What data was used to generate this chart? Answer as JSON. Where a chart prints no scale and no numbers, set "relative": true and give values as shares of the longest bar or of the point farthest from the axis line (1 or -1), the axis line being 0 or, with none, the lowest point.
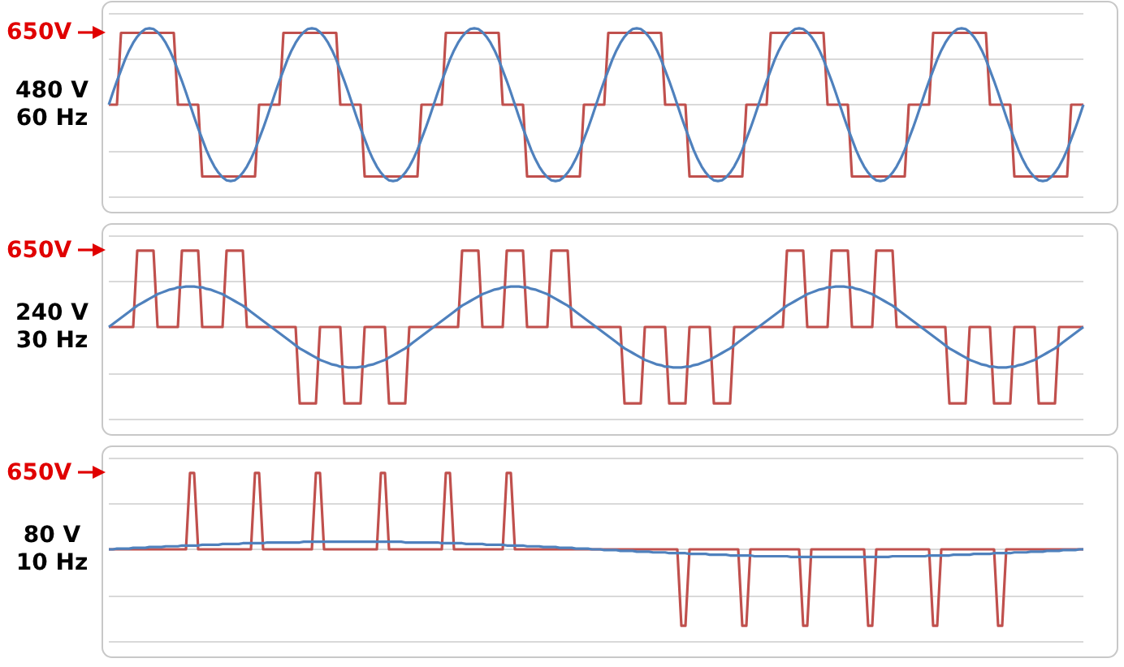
{
  "chart_data": [
    {
      "type": "line",
      "relative": true,
      "grid": "y",
      "annotations": [
        "650V",
        "480 V",
        "60 Hz"
      ],
      "categories": [
        null,
        null,
        null,
        null,
        null,
        null,
        null,
        null,
        null,
        null,
        null,
        null,
        null,
        null,
        null,
        null,
        null,
        null,
        null,
        null,
        null,
        null,
        null,
        null,
        null,
        null,
        null,
        null,
        null,
        null,
        null,
        null,
        null,
        null,
        null,
        null,
        null,
        null,
        null,
        null,
        null,
        null,
        null,
        null,
        null,
        null,
        null,
        null,
        null,
        null,
        null,
        null,
        null,
        null,
        null,
        null,
        null,
        null,
        null,
        null,
        null,
        null,
        null,
        null,
        null,
        null,
        null,
        null,
        null,
        null,
        null,
        null,
        null,
        null,
        null,
        null,
        null,
        null,
        null,
        null,
        null,
        null,
        null,
        null,
        null,
        null,
        null,
        null,
        null,
        null,
        null,
        null,
        null,
        null,
        null,
        null,
        null,
        null,
        null,
        null,
        null,
        null,
        null,
        null,
        null,
        null,
        null,
        null,
        null,
        null,
        null,
        null,
        null,
        null,
        null,
        null,
        null,
        null,
        null,
        null,
        null,
        null,
        null,
        null,
        null,
        null,
        null,
        null,
        null,
        null,
        null,
        null,
        null,
        null,
        null,
        null,
        null,
        null,
        null,
        null,
        null,
        null,
        null,
        null,
        null,
        null,
        null,
        null,
        null,
        null,
        null,
        null,
        null,
        null,
        null,
        null,
        null,
        null,
        null,
        null,
        null,
        null,
        null,
        null,
        null,
        null,
        null,
        null,
        null,
        null,
        null,
        null,
        null,
        null,
        null,
        null,
        null,
        null,
        null,
        null,
        null,
        null,
        null,
        null,
        null,
        null,
        null,
        null,
        null,
        null,
        null,
        null,
        null,
        null,
        null,
        null,
        null,
        null,
        null,
        null,
        null,
        null,
        null,
        null,
        null,
        null,
        null,
        null,
        null,
        null,
        null,
        null,
        null,
        null,
        null,
        null,
        null,
        null,
        null,
        null,
        null,
        null,
        null,
        null,
        null,
        null,
        null,
        null,
        null,
        null,
        null,
        null,
        null,
        null,
        null,
        null,
        null,
        null,
        null,
        null,
        null
      ],
      "series": [
        {
          "color": "#c0504d",
          "values": [
            0,
            0,
            0,
            0.94,
            0.94,
            0.94,
            0.94,
            0.94,
            0.94,
            0.94,
            0.94,
            0.94,
            0.94,
            0.94,
            0.94,
            0.94,
            0.94,
            0,
            0,
            0,
            0,
            0,
            0,
            -0.94,
            -0.94,
            -0.94,
            -0.94,
            -0.94,
            -0.94,
            -0.94,
            -0.94,
            -0.94,
            -0.94,
            -0.94,
            -0.94,
            -0.94,
            -0.94,
            0,
            0,
            0,
            0,
            0,
            0,
            0.94,
            0.94,
            0.94,
            0.94,
            0.94,
            0.94,
            0.94,
            0.94,
            0.94,
            0.94,
            0.94,
            0.94,
            0.94,
            0.94,
            0,
            0,
            0,
            0,
            0,
            0,
            -0.94,
            -0.94,
            -0.94,
            -0.94,
            -0.94,
            -0.94,
            -0.94,
            -0.94,
            -0.94,
            -0.94,
            -0.94,
            -0.94,
            -0.94,
            -0.94,
            0,
            0,
            0,
            0,
            0,
            0,
            0.94,
            0.94,
            0.94,
            0.94,
            0.94,
            0.94,
            0.94,
            0.94,
            0.94,
            0.94,
            0.94,
            0.94,
            0.94,
            0.94,
            0,
            0,
            0,
            0,
            0,
            0,
            -0.94,
            -0.94,
            -0.94,
            -0.94,
            -0.94,
            -0.94,
            -0.94,
            -0.94,
            -0.94,
            -0.94,
            -0.94,
            -0.94,
            -0.94,
            -0.94,
            0,
            0,
            0,
            0,
            0,
            0,
            0.94,
            0.94,
            0.94,
            0.94,
            0.94,
            0.94,
            0.94,
            0.94,
            0.94,
            0.94,
            0.94,
            0.94,
            0.94,
            0.94,
            0,
            0,
            0,
            0,
            0,
            0,
            -0.94,
            -0.94,
            -0.94,
            -0.94,
            -0.94,
            -0.94,
            -0.94,
            -0.94,
            -0.94,
            -0.94,
            -0.94,
            -0.94,
            -0.94,
            -0.94,
            0,
            0,
            0,
            0,
            0,
            0,
            0.94,
            0.94,
            0.94,
            0.94,
            0.94,
            0.94,
            0.94,
            0.94,
            0.94,
            0.94,
            0.94,
            0.94,
            0.94,
            0.94,
            0,
            0,
            0,
            0,
            0,
            0,
            -0.94,
            -0.94,
            -0.94,
            -0.94,
            -0.94,
            -0.94,
            -0.94,
            -0.94,
            -0.94,
            -0.94,
            -0.94,
            -0.94,
            -0.94,
            -0.94,
            0,
            0,
            0,
            0,
            0,
            0,
            0.94,
            0.94,
            0.94,
            0.94,
            0.94,
            0.94,
            0.94,
            0.94,
            0.94,
            0.94,
            0.94,
            0.94,
            0.94,
            0.94,
            0,
            0,
            0,
            0,
            0,
            0,
            -0.94,
            -0.94,
            -0.94,
            -0.94,
            -0.94,
            -0.94,
            -0.94,
            -0.94,
            -0.94,
            -0.94,
            -0.94,
            -0.94,
            -0.94,
            -0.94,
            0,
            0,
            0,
            0
          ]
        },
        {
          "color": "#4f81bd",
          "values": [
            0,
            0.16,
            0.31,
            0.45,
            0.59,
            0.71,
            0.81,
            0.89,
            0.95,
            0.99,
            1,
            0.99,
            0.95,
            0.89,
            0.81,
            0.71,
            0.59,
            0.45,
            0.31,
            0.16,
            0,
            -0.16,
            -0.31,
            -0.45,
            -0.59,
            -0.71,
            -0.81,
            -0.89,
            -0.95,
            -0.99,
            -1,
            -0.99,
            -0.95,
            -0.89,
            -0.81,
            -0.71,
            -0.59,
            -0.45,
            -0.31,
            -0.16,
            0,
            0.16,
            0.31,
            0.45,
            0.59,
            0.71,
            0.81,
            0.89,
            0.95,
            0.99,
            1,
            0.99,
            0.95,
            0.89,
            0.81,
            0.71,
            0.59,
            0.45,
            0.31,
            0.16,
            0,
            -0.16,
            -0.31,
            -0.45,
            -0.59,
            -0.71,
            -0.81,
            -0.89,
            -0.95,
            -0.99,
            -1,
            -0.99,
            -0.95,
            -0.89,
            -0.81,
            -0.71,
            -0.59,
            -0.45,
            -0.31,
            -0.16,
            0,
            0.16,
            0.31,
            0.45,
            0.59,
            0.71,
            0.81,
            0.89,
            0.95,
            0.99,
            1,
            0.99,
            0.95,
            0.89,
            0.81,
            0.71,
            0.59,
            0.45,
            0.31,
            0.16,
            0,
            -0.16,
            -0.31,
            -0.45,
            -0.59,
            -0.71,
            -0.81,
            -0.89,
            -0.95,
            -0.99,
            -1,
            -0.99,
            -0.95,
            -0.89,
            -0.81,
            -0.71,
            -0.59,
            -0.45,
            -0.31,
            -0.16,
            0,
            0.16,
            0.31,
            0.45,
            0.59,
            0.71,
            0.81,
            0.89,
            0.95,
            0.99,
            1,
            0.99,
            0.95,
            0.89,
            0.81,
            0.71,
            0.59,
            0.45,
            0.31,
            0.16,
            0,
            -0.16,
            -0.31,
            -0.45,
            -0.59,
            -0.71,
            -0.81,
            -0.89,
            -0.95,
            -0.99,
            -1,
            -0.99,
            -0.95,
            -0.89,
            -0.81,
            -0.71,
            -0.59,
            -0.45,
            -0.31,
            -0.16,
            0,
            0.16,
            0.31,
            0.45,
            0.59,
            0.71,
            0.81,
            0.89,
            0.95,
            0.99,
            1,
            0.99,
            0.95,
            0.89,
            0.81,
            0.71,
            0.59,
            0.45,
            0.31,
            0.16,
            0,
            -0.16,
            -0.31,
            -0.45,
            -0.59,
            -0.71,
            -0.81,
            -0.89,
            -0.95,
            -0.99,
            -1,
            -0.99,
            -0.95,
            -0.89,
            -0.81,
            -0.71,
            -0.59,
            -0.45,
            -0.31,
            -0.16,
            0,
            0.16,
            0.31,
            0.45,
            0.59,
            0.71,
            0.81,
            0.89,
            0.95,
            0.99,
            1,
            0.99,
            0.95,
            0.89,
            0.81,
            0.71,
            0.59,
            0.45,
            0.31,
            0.16,
            0,
            -0.16,
            -0.31,
            -0.45,
            -0.59,
            -0.71,
            -0.81,
            -0.89,
            -0.95,
            -0.99,
            -1,
            -0.99,
            -0.95,
            -0.89,
            -0.81,
            -0.71,
            -0.59,
            -0.45,
            -0.31,
            -0.16,
            0
          ]
        }
      ]
    },
    {
      "type": "line",
      "relative": true,
      "grid": "y",
      "annotations": [
        "650V",
        "240 V",
        "30 Hz"
      ],
      "categories": [
        null,
        null,
        null,
        null,
        null,
        null,
        null,
        null,
        null,
        null,
        null,
        null,
        null,
        null,
        null,
        null,
        null,
        null,
        null,
        null,
        null,
        null,
        null,
        null,
        null,
        null,
        null,
        null,
        null,
        null,
        null,
        null,
        null,
        null,
        null,
        null,
        null,
        null,
        null,
        null,
        null,
        null,
        null,
        null,
        null,
        null,
        null,
        null,
        null,
        null,
        null,
        null,
        null,
        null,
        null,
        null,
        null,
        null,
        null,
        null,
        null,
        null,
        null,
        null,
        null,
        null,
        null,
        null,
        null,
        null,
        null,
        null,
        null,
        null,
        null,
        null,
        null,
        null,
        null,
        null,
        null,
        null,
        null,
        null,
        null,
        null,
        null,
        null,
        null,
        null,
        null,
        null,
        null,
        null,
        null,
        null,
        null,
        null,
        null,
        null,
        null,
        null,
        null,
        null,
        null,
        null,
        null,
        null,
        null,
        null,
        null,
        null,
        null,
        null,
        null,
        null,
        null,
        null,
        null,
        null,
        null,
        null,
        null,
        null,
        null,
        null,
        null,
        null,
        null,
        null,
        null,
        null,
        null,
        null,
        null,
        null,
        null,
        null,
        null,
        null,
        null,
        null,
        null,
        null,
        null,
        null,
        null,
        null,
        null,
        null,
        null,
        null,
        null,
        null,
        null,
        null,
        null,
        null,
        null,
        null,
        null,
        null,
        null,
        null,
        null,
        null,
        null,
        null,
        null,
        null,
        null,
        null,
        null,
        null,
        null,
        null,
        null,
        null,
        null,
        null,
        null,
        null,
        null,
        null,
        null,
        null,
        null,
        null,
        null,
        null,
        null,
        null,
        null,
        null,
        null,
        null,
        null,
        null,
        null,
        null,
        null,
        null,
        null,
        null,
        null,
        null,
        null,
        null,
        null,
        null,
        null,
        null,
        null,
        null,
        null,
        null,
        null,
        null,
        null,
        null,
        null,
        null,
        null,
        null,
        null,
        null,
        null,
        null,
        null,
        null,
        null,
        null,
        null,
        null,
        null,
        null,
        null,
        null,
        null,
        null,
        null
      ],
      "series": [
        {
          "color": "#c0504d",
          "values": [
            0,
            0,
            0,
            0,
            0,
            0,
            0,
            1,
            1,
            1,
            1,
            1,
            0,
            0,
            0,
            0,
            0,
            0,
            1,
            1,
            1,
            1,
            1,
            0,
            0,
            0,
            0,
            0,
            0,
            1,
            1,
            1,
            1,
            1,
            0,
            0,
            0,
            0,
            0,
            0,
            0,
            0,
            0,
            0,
            0,
            0,
            0,
            -1,
            -1,
            -1,
            -1,
            -1,
            0,
            0,
            0,
            0,
            0,
            0,
            -1,
            -1,
            -1,
            -1,
            -1,
            0,
            0,
            0,
            0,
            0,
            0,
            -1,
            -1,
            -1,
            -1,
            -1,
            0,
            0,
            0,
            0,
            0,
            0,
            0,
            0,
            0,
            0,
            0,
            0,
            0,
            1,
            1,
            1,
            1,
            1,
            0,
            0,
            0,
            0,
            0,
            0,
            1,
            1,
            1,
            1,
            1,
            0,
            0,
            0,
            0,
            0,
            0,
            1,
            1,
            1,
            1,
            1,
            0,
            0,
            0,
            0,
            0,
            0,
            0,
            0,
            0,
            0,
            0,
            0,
            0,
            -1,
            -1,
            -1,
            -1,
            -1,
            0,
            0,
            0,
            0,
            0,
            0,
            -1,
            -1,
            -1,
            -1,
            -1,
            0,
            0,
            0,
            0,
            0,
            0,
            -1,
            -1,
            -1,
            -1,
            -1,
            0,
            0,
            0,
            0,
            0,
            0,
            0,
            0,
            0,
            0,
            0,
            0,
            0,
            1,
            1,
            1,
            1,
            1,
            0,
            0,
            0,
            0,
            0,
            0,
            1,
            1,
            1,
            1,
            1,
            0,
            0,
            0,
            0,
            0,
            0,
            1,
            1,
            1,
            1,
            1,
            0,
            0,
            0,
            0,
            0,
            0,
            0,
            0,
            0,
            0,
            0,
            0,
            0,
            -1,
            -1,
            -1,
            -1,
            -1,
            0,
            0,
            0,
            0,
            0,
            0,
            -1,
            -1,
            -1,
            -1,
            -1,
            0,
            0,
            0,
            0,
            0,
            0,
            -1,
            -1,
            -1,
            -1,
            -1,
            0,
            0,
            0,
            0,
            0,
            0,
            0
          ]
        },
        {
          "color": "#4f81bd",
          "values": [
            0,
            0.04,
            0.08,
            0.12,
            0.16,
            0.2,
            0.24,
            0.28,
            0.31,
            0.34,
            0.37,
            0.4,
            0.43,
            0.45,
            0.47,
            0.49,
            0.5,
            0.52,
            0.52,
            0.53,
            0.53,
            0.53,
            0.52,
            0.52,
            0.5,
            0.49,
            0.47,
            0.45,
            0.43,
            0.4,
            0.37,
            0.34,
            0.31,
            0.28,
            0.24,
            0.2,
            0.16,
            0.12,
            0.08,
            0.04,
            0,
            -0.04,
            -0.08,
            -0.12,
            -0.16,
            -0.2,
            -0.24,
            -0.28,
            -0.31,
            -0.34,
            -0.37,
            -0.4,
            -0.43,
            -0.45,
            -0.47,
            -0.49,
            -0.5,
            -0.52,
            -0.52,
            -0.53,
            -0.53,
            -0.53,
            -0.52,
            -0.52,
            -0.5,
            -0.49,
            -0.47,
            -0.45,
            -0.43,
            -0.4,
            -0.37,
            -0.34,
            -0.31,
            -0.28,
            -0.24,
            -0.2,
            -0.16,
            -0.12,
            -0.08,
            -0.04,
            0,
            0.04,
            0.08,
            0.12,
            0.16,
            0.2,
            0.24,
            0.28,
            0.31,
            0.34,
            0.37,
            0.4,
            0.43,
            0.45,
            0.47,
            0.49,
            0.5,
            0.52,
            0.52,
            0.53,
            0.53,
            0.53,
            0.52,
            0.52,
            0.5,
            0.49,
            0.47,
            0.45,
            0.43,
            0.4,
            0.37,
            0.34,
            0.31,
            0.28,
            0.24,
            0.2,
            0.16,
            0.12,
            0.08,
            0.04,
            0,
            -0.04,
            -0.08,
            -0.12,
            -0.16,
            -0.2,
            -0.24,
            -0.28,
            -0.31,
            -0.34,
            -0.37,
            -0.4,
            -0.43,
            -0.45,
            -0.47,
            -0.49,
            -0.5,
            -0.52,
            -0.52,
            -0.53,
            -0.53,
            -0.53,
            -0.52,
            -0.52,
            -0.5,
            -0.49,
            -0.47,
            -0.45,
            -0.43,
            -0.4,
            -0.37,
            -0.34,
            -0.31,
            -0.28,
            -0.24,
            -0.2,
            -0.16,
            -0.12,
            -0.08,
            -0.04,
            0,
            0.04,
            0.08,
            0.12,
            0.16,
            0.2,
            0.24,
            0.28,
            0.31,
            0.34,
            0.37,
            0.4,
            0.43,
            0.45,
            0.47,
            0.49,
            0.5,
            0.52,
            0.52,
            0.53,
            0.53,
            0.53,
            0.52,
            0.52,
            0.5,
            0.49,
            0.47,
            0.45,
            0.43,
            0.4,
            0.37,
            0.34,
            0.31,
            0.28,
            0.24,
            0.2,
            0.16,
            0.12,
            0.08,
            0.04,
            0,
            -0.04,
            -0.08,
            -0.12,
            -0.16,
            -0.2,
            -0.24,
            -0.28,
            -0.31,
            -0.34,
            -0.37,
            -0.4,
            -0.43,
            -0.45,
            -0.47,
            -0.49,
            -0.5,
            -0.52,
            -0.52,
            -0.53,
            -0.53,
            -0.53,
            -0.52,
            -0.52,
            -0.5,
            -0.49,
            -0.47,
            -0.45,
            -0.43,
            -0.4,
            -0.37,
            -0.34,
            -0.31,
            -0.28,
            -0.24,
            -0.2,
            -0.16,
            -0.12,
            -0.08,
            -0.04,
            0
          ]
        }
      ]
    },
    {
      "type": "line",
      "relative": true,
      "grid": "y",
      "annotations": [
        "650V",
        "80 V",
        "10 Hz"
      ],
      "categories": [
        null,
        null,
        null,
        null,
        null,
        null,
        null,
        null,
        null,
        null,
        null,
        null,
        null,
        null,
        null,
        null,
        null,
        null,
        null,
        null,
        null,
        null,
        null,
        null,
        null,
        null,
        null,
        null,
        null,
        null,
        null,
        null,
        null,
        null,
        null,
        null,
        null,
        null,
        null,
        null,
        null,
        null,
        null,
        null,
        null,
        null,
        null,
        null,
        null,
        null,
        null,
        null,
        null,
        null,
        null,
        null,
        null,
        null,
        null,
        null,
        null,
        null,
        null,
        null,
        null,
        null,
        null,
        null,
        null,
        null,
        null,
        null,
        null,
        null,
        null,
        null,
        null,
        null,
        null,
        null,
        null,
        null,
        null,
        null,
        null,
        null,
        null,
        null,
        null,
        null,
        null,
        null,
        null,
        null,
        null,
        null,
        null,
        null,
        null,
        null,
        null,
        null,
        null,
        null,
        null,
        null,
        null,
        null,
        null,
        null,
        null,
        null,
        null,
        null,
        null,
        null,
        null,
        null,
        null,
        null,
        null,
        null,
        null,
        null,
        null,
        null,
        null,
        null,
        null,
        null,
        null,
        null,
        null,
        null,
        null,
        null,
        null,
        null,
        null,
        null,
        null,
        null,
        null,
        null,
        null,
        null,
        null,
        null,
        null,
        null,
        null,
        null,
        null,
        null,
        null,
        null,
        null,
        null,
        null,
        null,
        null,
        null,
        null,
        null,
        null,
        null,
        null,
        null,
        null,
        null,
        null,
        null,
        null,
        null,
        null,
        null,
        null,
        null,
        null,
        null,
        null,
        null,
        null,
        null,
        null,
        null,
        null,
        null,
        null,
        null,
        null,
        null,
        null,
        null,
        null,
        null,
        null,
        null,
        null,
        null,
        null,
        null,
        null,
        null,
        null,
        null,
        null,
        null,
        null,
        null,
        null,
        null,
        null,
        null,
        null,
        null,
        null,
        null,
        null,
        null,
        null,
        null,
        null,
        null,
        null,
        null,
        null,
        null,
        null,
        null,
        null,
        null,
        null,
        null,
        null,
        null,
        null,
        null,
        null,
        null,
        null
      ],
      "series": [
        {
          "color": "#c0504d",
          "values": [
            0,
            0,
            0,
            0,
            0,
            0,
            0,
            0,
            0,
            0,
            0,
            0,
            0,
            0,
            0,
            0,
            0,
            0,
            0,
            0,
            1,
            1,
            0,
            0,
            0,
            0,
            0,
            0,
            0,
            0,
            0,
            0,
            0,
            0,
            0,
            0,
            1,
            1,
            0,
            0,
            0,
            0,
            0,
            0,
            0,
            0,
            0,
            0,
            0,
            0,
            0,
            1,
            1,
            0,
            0,
            0,
            0,
            0,
            0,
            0,
            0,
            0,
            0,
            0,
            0,
            0,
            0,
            1,
            1,
            0,
            0,
            0,
            0,
            0,
            0,
            0,
            0,
            0,
            0,
            0,
            0,
            0,
            0,
            1,
            1,
            0,
            0,
            0,
            0,
            0,
            0,
            0,
            0,
            0,
            0,
            0,
            0,
            0,
            1,
            1,
            0,
            0,
            0,
            0,
            0,
            0,
            0,
            0,
            0,
            0,
            0,
            0,
            0,
            0,
            0,
            0,
            0,
            0,
            0,
            0,
            0,
            0,
            0,
            0,
            0,
            0,
            0,
            0,
            0,
            0,
            0,
            0,
            0,
            0,
            0,
            0,
            0,
            0,
            0,
            0,
            0,
            -1,
            -1,
            0,
            0,
            0,
            0,
            0,
            0,
            0,
            0,
            0,
            0,
            0,
            0,
            0,
            -1,
            -1,
            0,
            0,
            0,
            0,
            0,
            0,
            0,
            0,
            0,
            0,
            0,
            0,
            0,
            -1,
            -1,
            0,
            0,
            0,
            0,
            0,
            0,
            0,
            0,
            0,
            0,
            0,
            0,
            0,
            0,
            -1,
            -1,
            0,
            0,
            0,
            0,
            0,
            0,
            0,
            0,
            0,
            0,
            0,
            0,
            0,
            0,
            -1,
            -1,
            0,
            0,
            0,
            0,
            0,
            0,
            0,
            0,
            0,
            0,
            0,
            0,
            0,
            0,
            -1,
            -1,
            0,
            0,
            0,
            0,
            0,
            0,
            0,
            0,
            0,
            0,
            0,
            0,
            0,
            0,
            0,
            0,
            0,
            0,
            0,
            0
          ]
        },
        {
          "color": "#4f81bd",
          "values": [
            0,
            0,
            0.01,
            0.01,
            0.01,
            0.01,
            0.02,
            0.02,
            0.02,
            0.02,
            0.03,
            0.03,
            0.03,
            0.03,
            0.04,
            0.04,
            0.04,
            0.04,
            0.05,
            0.05,
            0.05,
            0.05,
            0.05,
            0.06,
            0.06,
            0.06,
            0.06,
            0.06,
            0.07,
            0.07,
            0.07,
            0.07,
            0.07,
            0.08,
            0.08,
            0.08,
            0.08,
            0.08,
            0.08,
            0.09,
            0.09,
            0.09,
            0.09,
            0.09,
            0.09,
            0.09,
            0.09,
            0.09,
            0.1,
            0.1,
            0.1,
            0.1,
            0.1,
            0.1,
            0.1,
            0.1,
            0.1,
            0.1,
            0.1,
            0.1,
            0.1,
            0.1,
            0.1,
            0.1,
            0.1,
            0.1,
            0.1,
            0.1,
            0.1,
            0.1,
            0.1,
            0.1,
            0.1,
            0.09,
            0.09,
            0.09,
            0.09,
            0.09,
            0.09,
            0.09,
            0.09,
            0.09,
            0.08,
            0.08,
            0.08,
            0.08,
            0.08,
            0.08,
            0.07,
            0.07,
            0.07,
            0.07,
            0.07,
            0.06,
            0.06,
            0.06,
            0.06,
            0.06,
            0.05,
            0.05,
            0.05,
            0.05,
            0.05,
            0.04,
            0.04,
            0.04,
            0.04,
            0.03,
            0.03,
            0.03,
            0.03,
            0.02,
            0.02,
            0.02,
            0.02,
            0.01,
            0.01,
            0.01,
            0.01,
            0,
            0,
            0,
            -0.01,
            -0.01,
            -0.01,
            -0.01,
            -0.02,
            -0.02,
            -0.02,
            -0.02,
            -0.03,
            -0.03,
            -0.03,
            -0.03,
            -0.04,
            -0.04,
            -0.04,
            -0.04,
            -0.05,
            -0.05,
            -0.05,
            -0.05,
            -0.05,
            -0.06,
            -0.06,
            -0.06,
            -0.06,
            -0.06,
            -0.07,
            -0.07,
            -0.07,
            -0.07,
            -0.07,
            -0.08,
            -0.08,
            -0.08,
            -0.08,
            -0.08,
            -0.08,
            -0.09,
            -0.09,
            -0.09,
            -0.09,
            -0.09,
            -0.09,
            -0.09,
            -0.09,
            -0.09,
            -0.1,
            -0.1,
            -0.1,
            -0.1,
            -0.1,
            -0.1,
            -0.1,
            -0.1,
            -0.1,
            -0.1,
            -0.1,
            -0.1,
            -0.1,
            -0.1,
            -0.1,
            -0.1,
            -0.1,
            -0.1,
            -0.1,
            -0.1,
            -0.1,
            -0.1,
            -0.1,
            -0.1,
            -0.1,
            -0.09,
            -0.09,
            -0.09,
            -0.09,
            -0.09,
            -0.09,
            -0.09,
            -0.09,
            -0.09,
            -0.08,
            -0.08,
            -0.08,
            -0.08,
            -0.08,
            -0.08,
            -0.07,
            -0.07,
            -0.07,
            -0.07,
            -0.07,
            -0.06,
            -0.06,
            -0.06,
            -0.06,
            -0.06,
            -0.05,
            -0.05,
            -0.05,
            -0.05,
            -0.05,
            -0.04,
            -0.04,
            -0.04,
            -0.04,
            -0.03,
            -0.03,
            -0.03,
            -0.03,
            -0.02,
            -0.02,
            -0.02,
            -0.02,
            -0.01,
            -0.01,
            -0.01,
            -0.01,
            0,
            0
          ]
        }
      ]
    }
  ]
}
